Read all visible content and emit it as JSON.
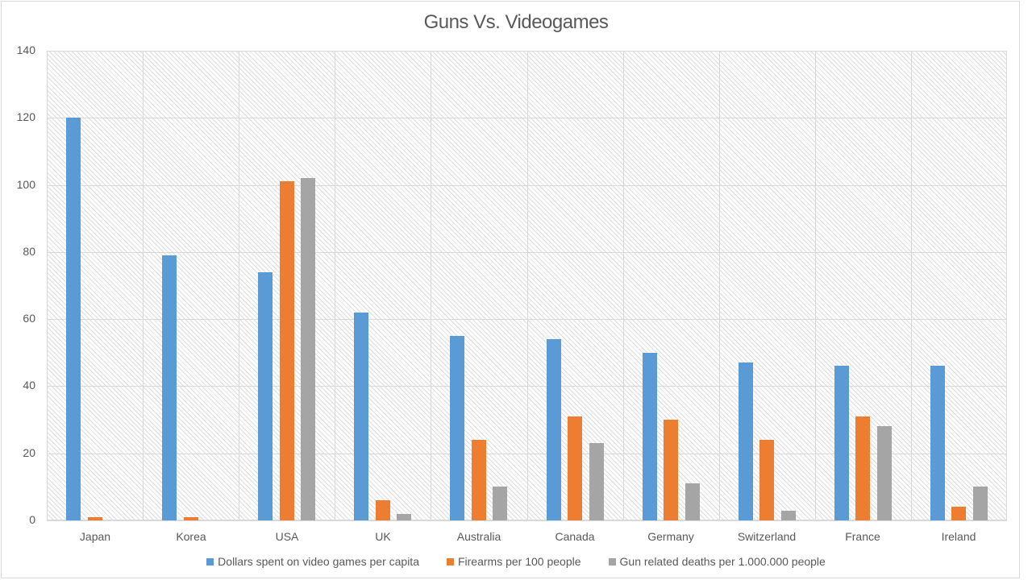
{
  "chart_data": {
    "type": "bar",
    "title": "Guns Vs. Videogames",
    "xlabel": "",
    "ylabel": "",
    "ylim": [
      0,
      140
    ],
    "yticks": [
      0,
      20,
      40,
      60,
      80,
      100,
      120,
      140
    ],
    "grid": true,
    "legend_position": "bottom",
    "categories": [
      "Japan",
      "Korea",
      "USA",
      "UK",
      "Australia",
      "Canada",
      "Germany",
      "Switzerland",
      "France",
      "Ireland"
    ],
    "series": [
      {
        "name": "Dollars spent on video games per capita",
        "color": "#5b9bd5",
        "values": [
          120,
          79,
          74,
          62,
          55,
          54,
          50,
          47,
          46,
          46
        ]
      },
      {
        "name": "Firearms per 100 people",
        "color": "#ed7d31",
        "values": [
          1,
          1,
          101,
          6,
          24,
          31,
          30,
          24,
          31,
          4
        ]
      },
      {
        "name": "Gun related deaths per 1.000.000 people",
        "color": "#a5a5a5",
        "values": [
          0,
          0,
          102,
          2,
          10,
          23,
          11,
          3,
          28,
          10
        ]
      }
    ]
  }
}
